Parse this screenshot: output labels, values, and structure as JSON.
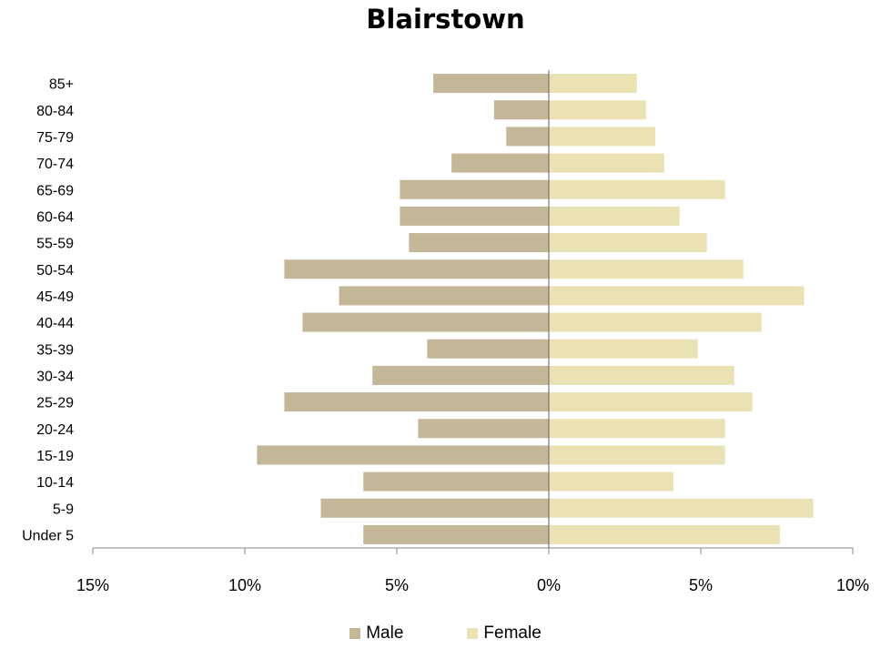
{
  "chart_data": {
    "type": "bar",
    "orientation": "horizontal",
    "title": "Blairstown",
    "categories": [
      "85+",
      "80-84",
      "75-79",
      "70-74",
      "65-69",
      "60-64",
      "55-59",
      "50-54",
      "45-49",
      "40-44",
      "35-39",
      "30-34",
      "25-29",
      "20-24",
      "15-19",
      "10-14",
      "5-9",
      "Under 5"
    ],
    "series": [
      {
        "name": "Male",
        "color": "#c4b797",
        "values": [
          3.8,
          1.8,
          1.4,
          3.2,
          4.9,
          4.9,
          4.6,
          8.7,
          6.9,
          8.1,
          4.0,
          5.8,
          8.7,
          4.3,
          9.6,
          6.1,
          7.5,
          6.1
        ]
      },
      {
        "name": "Female",
        "color": "#ebe2b3",
        "values": [
          2.9,
          3.2,
          3.5,
          3.8,
          5.8,
          4.3,
          5.2,
          6.4,
          8.4,
          7.0,
          4.9,
          6.1,
          6.7,
          5.8,
          5.8,
          4.1,
          8.7,
          7.6
        ]
      }
    ],
    "xlim": [
      -15,
      10
    ],
    "xticks": [
      {
        "value": -15,
        "label": "15%"
      },
      {
        "value": -10,
        "label": "10%"
      },
      {
        "value": -5,
        "label": "5%"
      },
      {
        "value": 0,
        "label": "0%"
      },
      {
        "value": 5,
        "label": "5%"
      },
      {
        "value": 10,
        "label": "10%"
      }
    ],
    "grid": false,
    "legend_position": "bottom"
  }
}
